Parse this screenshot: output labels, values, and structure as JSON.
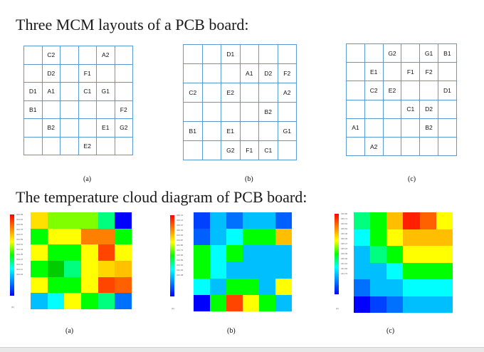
{
  "headings": {
    "layouts": "Three MCM layouts of a PCB board:",
    "temperature": "The temperature cloud diagram of PCB board:"
  },
  "layouts": [
    {
      "caption": "(a)",
      "cells": [
        [
          "",
          "C2",
          "",
          "",
          "A2",
          ""
        ],
        [
          "",
          "D2",
          "",
          "F1",
          "",
          ""
        ],
        [
          "D1",
          "A1",
          "",
          "C1",
          "G1",
          ""
        ],
        [
          "B1",
          "",
          "",
          "",
          "",
          "F2"
        ],
        [
          "",
          "B2",
          "",
          "",
          "E1",
          "G2"
        ],
        [
          "",
          "",
          "",
          "E2",
          "",
          ""
        ]
      ]
    },
    {
      "caption": "(b)",
      "cells": [
        [
          "",
          "",
          "D1",
          "",
          "",
          ""
        ],
        [
          "",
          "",
          "",
          "A1",
          "D2",
          "F2"
        ],
        [
          "C2",
          "",
          "E2",
          "",
          "",
          "A2"
        ],
        [
          "",
          "",
          "",
          "",
          "B2",
          ""
        ],
        [
          "B1",
          "",
          "E1",
          "",
          "",
          "G1"
        ],
        [
          "",
          "",
          "G2",
          "F1",
          "C1",
          ""
        ]
      ]
    },
    {
      "caption": "(c)",
      "cells": [
        [
          "",
          "",
          "G2",
          "",
          "G1",
          "B1"
        ],
        [
          "",
          "E1",
          "",
          "F1",
          "F2",
          ""
        ],
        [
          "",
          "C2",
          "E2",
          "",
          "",
          "D1"
        ],
        [
          "",
          "",
          "",
          "C1",
          "D2",
          ""
        ],
        [
          "A1",
          "",
          "",
          "",
          "B2",
          ""
        ],
        [
          "",
          "A2",
          "",
          "",
          "",
          ""
        ]
      ]
    }
  ],
  "heatmaps": [
    {
      "caption": "(a)",
      "colors": [
        [
          "#ffe000",
          "#7fff00",
          "#7fff00",
          "#7fff00",
          "#00ff7f",
          "#0000ff"
        ],
        [
          "#00ff00",
          "#ffff00",
          "#ffff00",
          "#ff7f00",
          "#ff7f00",
          "#00ff00"
        ],
        [
          "#ffff00",
          "#00ff00",
          "#00ff00",
          "#ffff00",
          "#ff4500",
          "#ffff00"
        ],
        [
          "#00ff00",
          "#00cc00",
          "#00ff7f",
          "#ffff00",
          "#ffd700",
          "#ffc000"
        ],
        [
          "#ffff00",
          "#00ff00",
          "#00ff00",
          "#ffff00",
          "#ff4500",
          "#ff6000"
        ],
        [
          "#00bfff",
          "#00ffff",
          "#ffff00",
          "#00ff00",
          "#00ff7f",
          "#0070ff"
        ]
      ],
      "legend_ticks": [
        "344.99",
        "344.91",
        "344.83",
        "344.75",
        "344.67",
        "344.59",
        "344.51",
        "344.43",
        "344.35",
        "344.27",
        "344.19",
        "344.11",
        "344.03"
      ],
      "unit": "[K]"
    },
    {
      "caption": "(b)",
      "colors": [
        [
          "#0040ff",
          "#00bfff",
          "#0070ff",
          "#00bfff",
          "#00bfff",
          "#0060ff"
        ],
        [
          "#0060ff",
          "#00bfff",
          "#00ffff",
          "#00ff00",
          "#00ff00",
          "#ffbf00"
        ],
        [
          "#00ff00",
          "#00ffff",
          "#00ff00",
          "#00bfff",
          "#00bfff",
          "#00bfff"
        ],
        [
          "#00ff00",
          "#00ffff",
          "#00bfff",
          "#00bfff",
          "#00bfff",
          "#00bfff"
        ],
        [
          "#00ffff",
          "#00bfff",
          "#00ff00",
          "#00ff00",
          "#00bfff",
          "#ffff00"
        ],
        [
          "#0000ff",
          "#00ff00",
          "#ff4500",
          "#ffff00",
          "#00ff00",
          "#00bfff"
        ]
      ],
      "legend_ticks": [
        "345.21",
        "345.14",
        "345.07",
        "345.01",
        "344.94",
        "344.87",
        "344.80",
        "344.73",
        "344.66",
        "344.59",
        "344.52",
        "344.45",
        "344.38"
      ],
      "unit": "[K]"
    },
    {
      "caption": "(c)",
      "colors": [
        [
          "#00ff7f",
          "#00ff00",
          "#ffbf00",
          "#ff2000",
          "#ff6000",
          "#ffff00"
        ],
        [
          "#00ffff",
          "#00ff00",
          "#ffff00",
          "#ffbf00",
          "#ffbf00",
          "#ffbf00"
        ],
        [
          "#00bfff",
          "#00ff7f",
          "#00ff00",
          "#ffff00",
          "#ffff00",
          "#ffff00"
        ],
        [
          "#00bfff",
          "#00bfff",
          "#00ffff",
          "#00ff00",
          "#00ff00",
          "#00ff00"
        ],
        [
          "#0070ff",
          "#00bfff",
          "#00bfff",
          "#00ffff",
          "#00ffff",
          "#00ffff"
        ],
        [
          "#0000ff",
          "#0040ff",
          "#0070ff",
          "#00bfff",
          "#00bfff",
          "#00bfff"
        ]
      ],
      "legend_ticks": [
        "345.80",
        "345.71",
        "345.62",
        "345.54",
        "345.45",
        "345.36",
        "345.27",
        "345.18",
        "345.09",
        "345.00",
        "344.91",
        "344.82",
        "344.73"
      ],
      "unit": "[K]"
    }
  ]
}
